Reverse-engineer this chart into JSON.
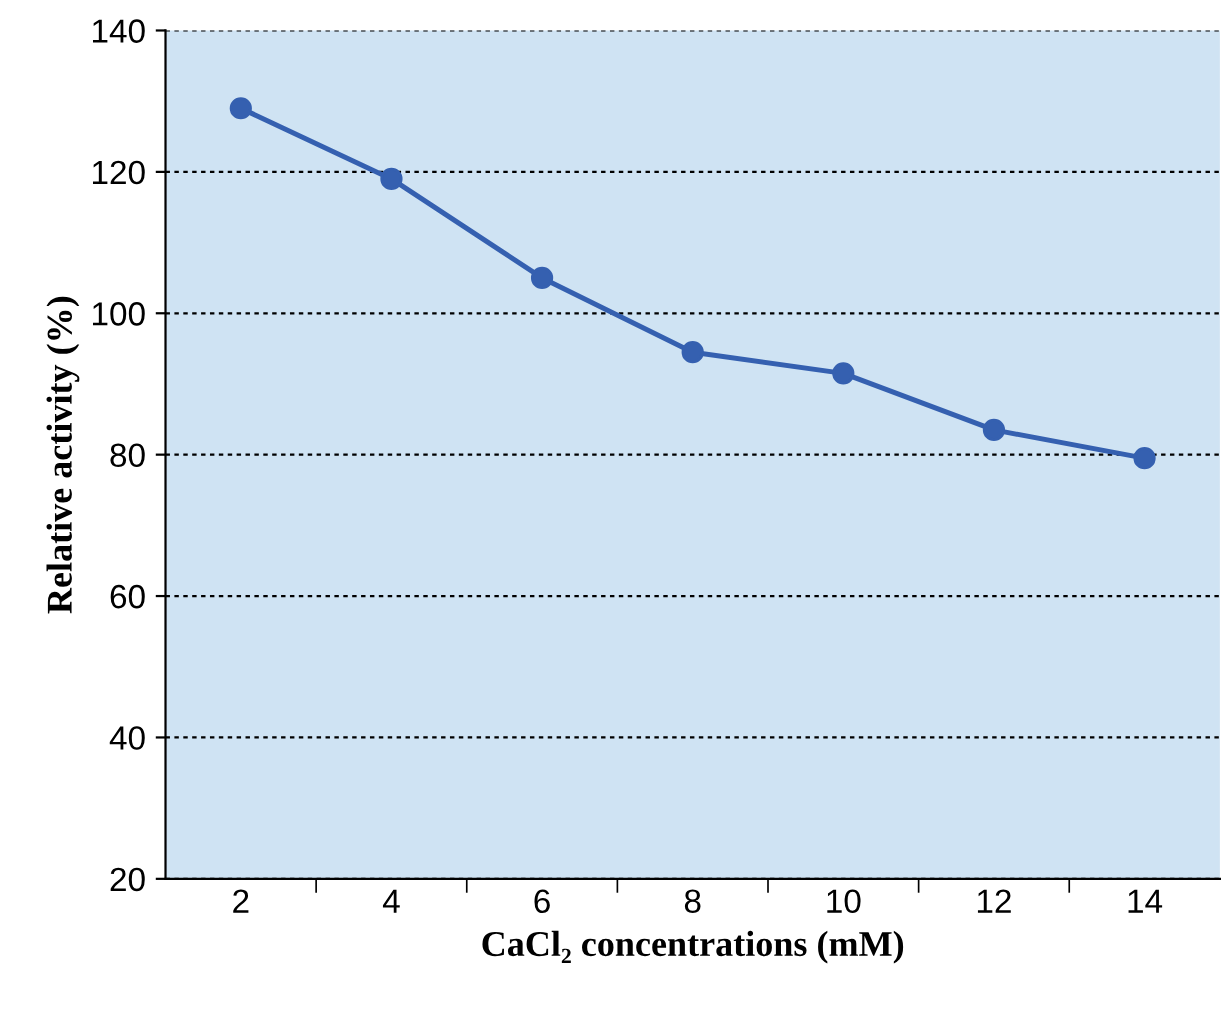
{
  "chart_data": {
    "type": "line",
    "xlabel": "CaCl₂ concentrations (mM)",
    "ylabel": "Relative activity (%)",
    "categories": [
      "2",
      "4",
      "6",
      "8",
      "10",
      "12",
      "14"
    ],
    "series": [
      {
        "color": "#3560b0",
        "values": [
          129,
          119,
          105,
          94.5,
          91.5,
          83.5,
          79.5
        ]
      }
    ],
    "ylim": [
      20,
      140
    ],
    "yticks": [
      20,
      40,
      60,
      80,
      100,
      120,
      140
    ],
    "grid": "y",
    "marker": "circle",
    "line_style": "solid"
  }
}
